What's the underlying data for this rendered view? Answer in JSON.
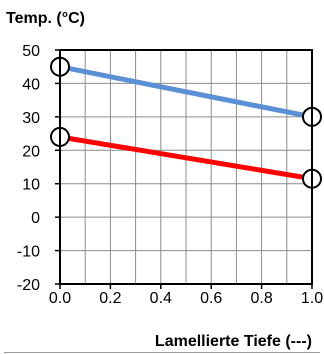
{
  "chart_data": {
    "type": "line",
    "ylabel": "Temp. (°C)",
    "xlabel": "Lamellierte Tiefe (---)",
    "xlim": [
      0.0,
      1.0
    ],
    "ylim": [
      -20,
      50
    ],
    "x_ticks": [
      "0.0",
      "0.2",
      "0.4",
      "0.6",
      "0.8",
      "1.0"
    ],
    "y_ticks": [
      "50",
      "40",
      "30",
      "20",
      "10",
      "0",
      "-10",
      "-20"
    ],
    "grid": true,
    "series": [
      {
        "color": "#5b8fd6",
        "x": [
          0.0,
          1.0
        ],
        "y": [
          45,
          30
        ]
      },
      {
        "color": "#ff0000",
        "x": [
          0.0,
          1.0
        ],
        "y": [
          24,
          11.5
        ]
      }
    ]
  }
}
